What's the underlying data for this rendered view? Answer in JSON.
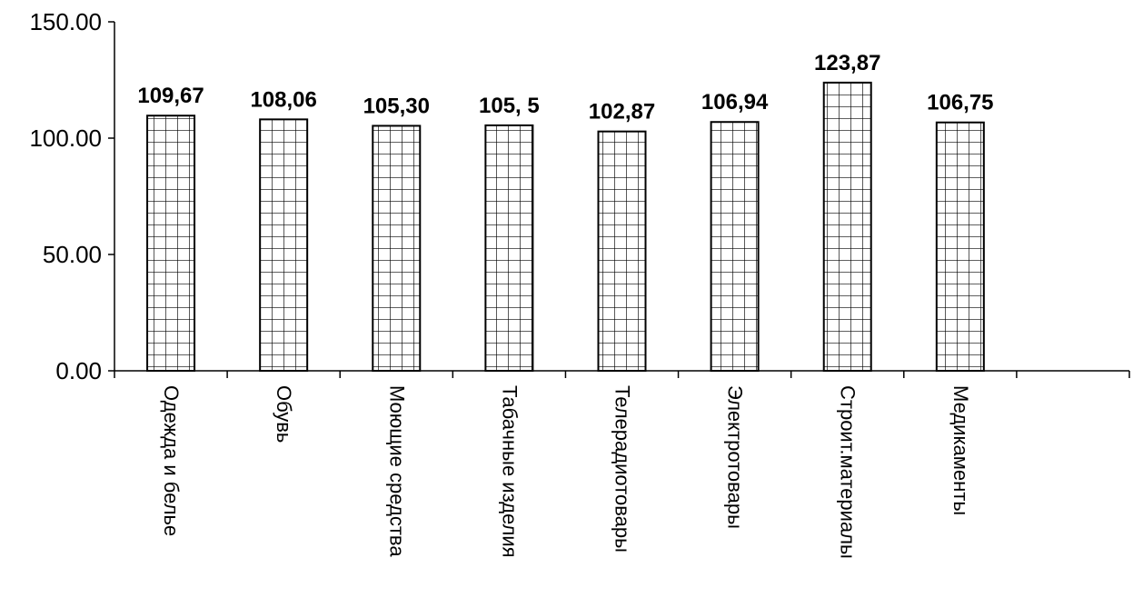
{
  "chart_data": {
    "type": "bar",
    "categories": [
      "Одежда и белье",
      "Обувь",
      "Моющие средства",
      "Табачные изделия",
      "Телерадиотовары",
      "Электротовары",
      "Строит.материалы",
      "Медикаменты"
    ],
    "values": [
      109.67,
      108.06,
      105.3,
      105.5,
      102.87,
      106.94,
      123.87,
      106.75
    ],
    "data_labels": [
      "109,67",
      "108,06",
      "105,30",
      "105, 5",
      "102,87",
      "106,94",
      "123,87",
      "106,75"
    ],
    "y_ticks": [
      "0.00",
      "50.00",
      "100.00",
      "150.00"
    ],
    "ylim": [
      0,
      150
    ],
    "title": "",
    "xlabel": "",
    "ylabel": "",
    "grid": false,
    "legend": "none",
    "bar_fill": "#ffffff",
    "bar_pattern": "grid",
    "color": "#000000"
  }
}
